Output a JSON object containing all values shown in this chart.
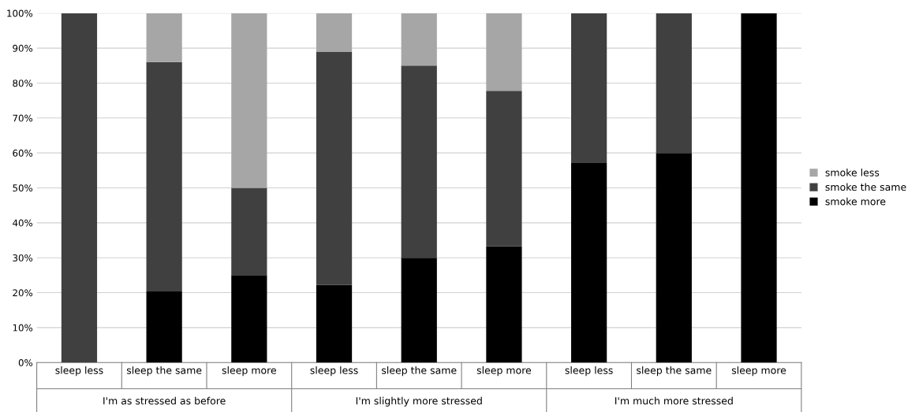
{
  "chart_data": {
    "type": "bar",
    "stacked": true,
    "categories": [
      "sleep less",
      "sleep the same",
      "sleep more",
      "sleep less",
      "sleep the same",
      "sleep more",
      "sleep less",
      "sleep the same",
      "sleep more"
    ],
    "series": [
      {
        "name": "smoke more",
        "color": "#000000",
        "values": [
          0,
          20.5,
          25,
          22.2,
          30,
          33.3,
          57.1,
          60,
          100
        ]
      },
      {
        "name": "smoke the same",
        "color": "#404040",
        "values": [
          100,
          65.5,
          25,
          66.7,
          55,
          44.5,
          42.9,
          40,
          0
        ]
      },
      {
        "name": "smoke less",
        "color": "#a6a6a6",
        "values": [
          0,
          14,
          50,
          11.1,
          15,
          22.2,
          0,
          0,
          0
        ]
      }
    ],
    "annotations": [
      "I'm as stressed as before",
      "I'm slightly more stressed",
      "I'm much more stressed"
    ],
    "ylim": [
      0,
      100
    ],
    "yticks": [
      {
        "value": 0,
        "label": "0%"
      },
      {
        "value": 10,
        "label": "10%"
      },
      {
        "value": 20,
        "label": "20%"
      },
      {
        "value": 30,
        "label": "30%"
      },
      {
        "value": 40,
        "label": "40%"
      },
      {
        "value": 50,
        "label": "50%"
      },
      {
        "value": 60,
        "label": "60%"
      },
      {
        "value": 70,
        "label": "70%"
      },
      {
        "value": 80,
        "label": "80%"
      },
      {
        "value": 90,
        "label": "90%"
      },
      {
        "value": 100,
        "label": "100%"
      }
    ],
    "grid": "y",
    "legend": "right"
  }
}
